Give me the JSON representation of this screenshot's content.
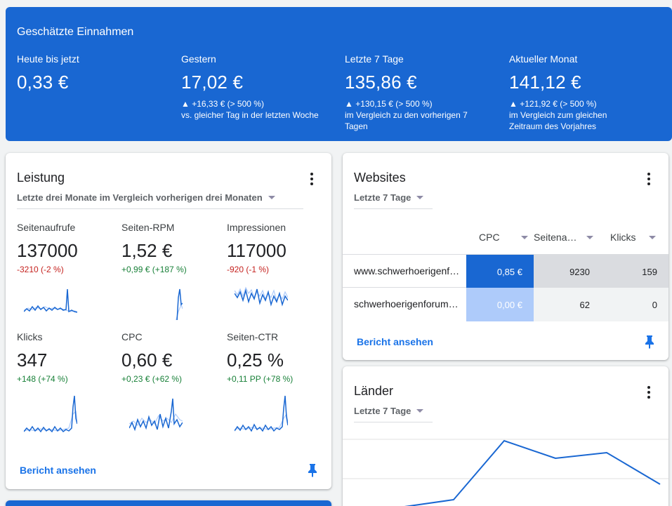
{
  "earnings": {
    "title": "Geschätzte Einnahmen",
    "columns": [
      {
        "label": "Heute bis jetzt",
        "value": "0,33 €",
        "delta": "",
        "comparison": ""
      },
      {
        "label": "Gestern",
        "value": "17,02 €",
        "delta": "▲ +16,33 € (> 500 %)",
        "comparison": "vs. gleicher Tag in der letzten Woche"
      },
      {
        "label": "Letzte 7 Tage",
        "value": "135,86 €",
        "delta": "▲ +130,15 € (> 500 %)",
        "comparison": "im Vergleich zu den vorherigen 7 Tagen"
      },
      {
        "label": "Aktueller Monat",
        "value": "141,12 €",
        "delta": "▲ +121,92 € (> 500 %)",
        "comparison": "im Vergleich zum gleichen Zeitraum des Vorjahres"
      }
    ]
  },
  "performance": {
    "title": "Leistung",
    "range": "Letzte drei Monate im Vergleich vorherigen drei Monaten",
    "metrics": [
      {
        "label": "Seitenaufrufe",
        "value": "137000",
        "delta": "-3210 (-2 %)",
        "trend": "neg"
      },
      {
        "label": "Seiten-RPM",
        "value": "1,52 €",
        "delta": "+0,99 € (+187 %)",
        "trend": "pos"
      },
      {
        "label": "Impressionen",
        "value": "117000",
        "delta": "-920 (-1 %)",
        "trend": "neg"
      },
      {
        "label": "Klicks",
        "value": "347",
        "delta": "+148 (+74 %)",
        "trend": "pos"
      },
      {
        "label": "CPC",
        "value": "0,60 €",
        "delta": "+0,23 € (+62 %)",
        "trend": "pos"
      },
      {
        "label": "Seiten-CTR",
        "value": "0,25 %",
        "delta": "+0,11 PP (+78 %)",
        "trend": "pos"
      }
    ],
    "link": "Bericht ansehen"
  },
  "websites": {
    "title": "Websites",
    "range": "Letzte 7 Tage",
    "columns": [
      "CPC",
      "Seitena…",
      "Klicks"
    ],
    "rows": [
      {
        "site": "www.schwerhoerigenf…",
        "cpc": "0,85 €",
        "pageviews": "9230",
        "clicks": "159"
      },
      {
        "site": "schwerhoerigenforum…",
        "cpc": "0,00 €",
        "pageviews": "62",
        "clicks": "0"
      }
    ],
    "link": "Bericht ansehen"
  },
  "countries": {
    "title": "Länder",
    "range": "Letzte 7 Tage"
  },
  "colors": {
    "brand": "#1967d2",
    "link": "#1a73e8",
    "positive": "#188038",
    "negative": "#c5221f",
    "heat_high": "#1967d2",
    "heat_low": "#aecbfa"
  }
}
